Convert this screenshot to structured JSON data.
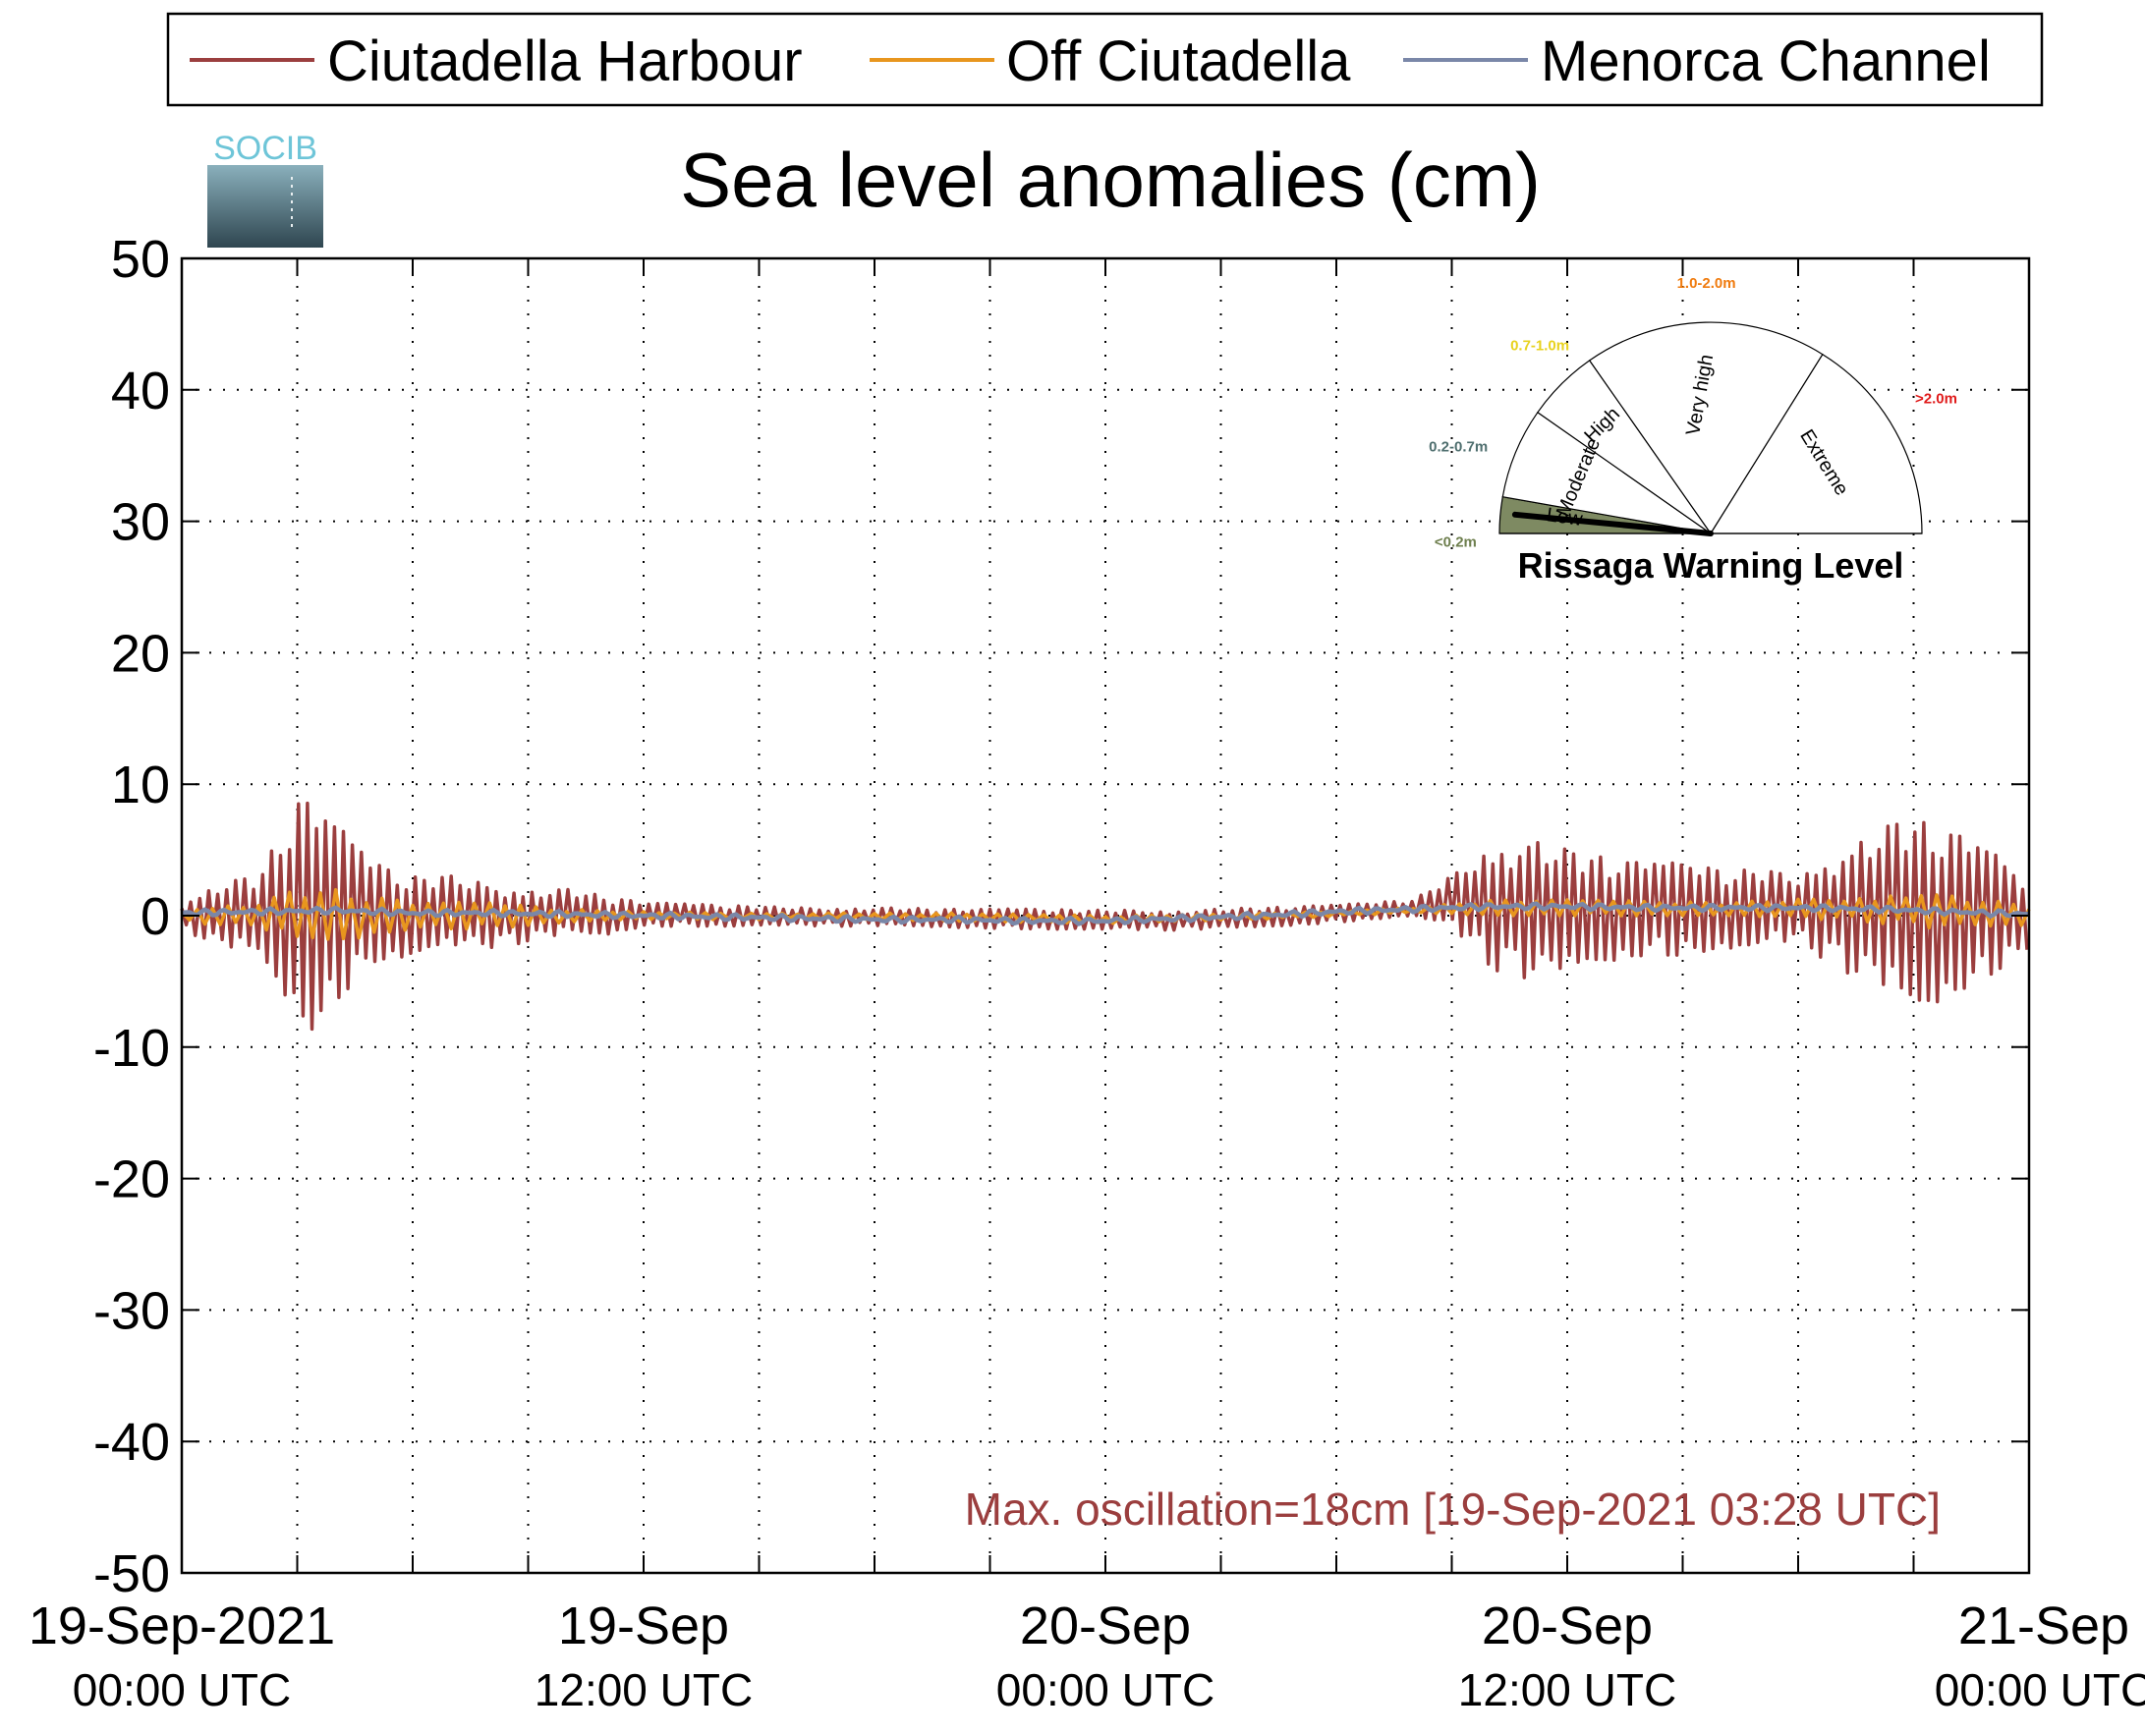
{
  "chart_data": {
    "type": "line",
    "title": "Sea level anomalies (cm)",
    "xlabel": "",
    "ylabel": "",
    "ylim": [
      -50,
      50
    ],
    "yticks": [
      50,
      40,
      30,
      20,
      10,
      0,
      -10,
      -20,
      -30,
      -40,
      -50
    ],
    "xlim_hours": [
      0,
      48
    ],
    "xticks": [
      {
        "line1": "19-Sep-2021",
        "line2": "00:00 UTC"
      },
      {
        "line1": "19-Sep",
        "line2": "12:00 UTC"
      },
      {
        "line1": "20-Sep",
        "line2": "00:00 UTC"
      },
      {
        "line1": "20-Sep",
        "line2": "12:00 UTC"
      },
      {
        "line1": "21-Sep",
        "line2": "00:00 UTC"
      }
    ],
    "grid": true,
    "legend_position": "top",
    "series": [
      {
        "name": "Ciutadella Harbour",
        "color": "#9b3e3e",
        "x_hours": [
          0,
          1,
          2,
          3,
          3.5,
          4,
          5,
          6,
          7,
          8,
          9,
          10,
          11,
          12,
          14,
          16,
          18,
          20,
          22,
          24,
          26,
          28,
          30,
          32,
          33,
          34,
          35,
          36,
          37,
          38,
          39,
          40,
          41,
          42,
          43,
          44,
          45,
          46,
          47,
          48
        ],
        "ymax": [
          1,
          2.5,
          3,
          9,
          8.5,
          7,
          4,
          3,
          3,
          2.5,
          2,
          2,
          1.5,
          1,
          0.8,
          0.6,
          0.6,
          0.5,
          0.5,
          0.4,
          0.4,
          0.6,
          0.8,
          1.2,
          3,
          5.5,
          6,
          5,
          4.5,
          4,
          4,
          3.5,
          3.5,
          3,
          5,
          6.5,
          7.5,
          6.5,
          5,
          2
        ],
        "ymin": [
          -1,
          -2.5,
          -3,
          -7.5,
          -9,
          -6.5,
          -3.5,
          -3,
          -2.5,
          -2.5,
          -2,
          -1.5,
          -1.5,
          -0.8,
          -0.8,
          -0.8,
          -0.8,
          -0.9,
          -1,
          -1.1,
          -1.1,
          -0.9,
          -0.5,
          0,
          -1,
          -4,
          -5,
          -4.5,
          -3.5,
          -3,
          -3,
          -2.5,
          -2.5,
          -2,
          -4,
          -5.5,
          -7.5,
          -6,
          -4.5,
          -2.5
        ]
      },
      {
        "name": "Off Ciutadella",
        "color": "#e8961e",
        "x_hours": [
          0,
          2,
          3,
          4,
          6,
          8,
          10,
          12,
          16,
          20,
          24,
          28,
          32,
          34,
          36,
          40,
          44,
          45,
          46,
          48
        ],
        "ymax": [
          0.5,
          1,
          2,
          2,
          1,
          1,
          0.5,
          0.3,
          0.2,
          0.2,
          0,
          0.2,
          0.6,
          1.2,
          1.2,
          1,
          1.5,
          2,
          1.5,
          0.8
        ],
        "ymin": [
          -0.5,
          -1,
          -2,
          -2,
          -1,
          -1,
          -0.5,
          -0.3,
          -0.3,
          -0.4,
          -0.6,
          -0.3,
          0.2,
          0,
          0,
          0,
          -0.5,
          -1,
          -1,
          -0.8
        ]
      },
      {
        "name": "Menorca Channel",
        "color": "#7a87a8",
        "x_hours": [
          0,
          2,
          4,
          6,
          8,
          10,
          12,
          14,
          16,
          18,
          20,
          22,
          24,
          26,
          28,
          30,
          32,
          34,
          36,
          38,
          40,
          42,
          44,
          46,
          48
        ],
        "y": [
          0.2,
          0.3,
          0.4,
          0.2,
          0.2,
          0.1,
          0,
          -0.1,
          -0.2,
          -0.3,
          -0.3,
          -0.4,
          -0.4,
          -0.2,
          0,
          0.3,
          0.5,
          0.7,
          0.7,
          0.6,
          0.6,
          0.6,
          0.5,
          0.3,
          0.1
        ]
      }
    ],
    "annotation": "Max. oscillation=18cm [19-Sep-2021 03:28 UTC]",
    "annotation_color": "#9b3e3e"
  },
  "gauge": {
    "title": "Rissaga Warning Level",
    "current_level": "Low",
    "levels": [
      {
        "name": "Low",
        "range": "<0.2m",
        "range_color": "#6e7f4e",
        "fill": "#7e8a62"
      },
      {
        "name": "Moderate",
        "range": "0.2-0.7m",
        "range_color": "#4f6f6f",
        "fill": "#ffffff"
      },
      {
        "name": "High",
        "range": "0.7-1.0m",
        "range_color": "#e8d21e",
        "fill": "#ffffff"
      },
      {
        "name": "Very high",
        "range": "1.0-2.0m",
        "range_color": "#f07b0e",
        "fill": "#ffffff"
      },
      {
        "name": "Extreme",
        "range": ">2.0m",
        "range_color": "#e01b1b",
        "fill": "#ffffff"
      }
    ]
  },
  "logo": {
    "text": "SOCIB",
    "color": "#6ec5d8"
  }
}
